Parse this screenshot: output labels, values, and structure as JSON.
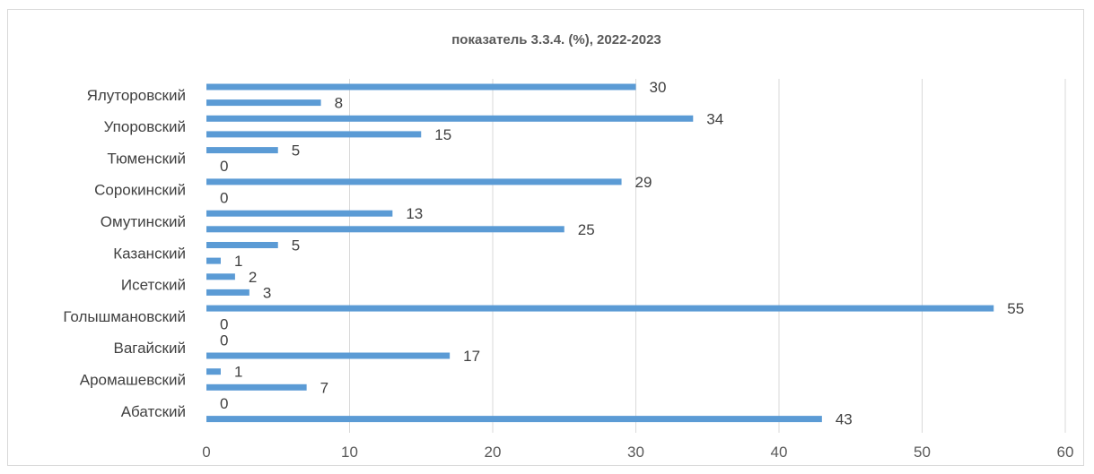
{
  "chart_data": {
    "type": "bar",
    "orientation": "horizontal",
    "title": "показатель 3.3.4. (%), 2022-2023",
    "xlim": [
      0,
      60
    ],
    "x_ticks": [
      0,
      10,
      20,
      30,
      40,
      50,
      60
    ],
    "grid": "vertical",
    "bar_color": "#5b9bd5",
    "categories": [
      "Ялуторовский",
      "Упоровский",
      "Тюменский",
      "Сорокинский",
      "Омутинский",
      "Казанский",
      "Исетский",
      "Голышмановский",
      "Вагайский",
      "Аромашевский",
      "Абатский"
    ],
    "bars": [
      {
        "category": "Ялуторовский",
        "values": [
          30,
          8
        ]
      },
      {
        "category": "Упоровский",
        "values": [
          34,
          15
        ]
      },
      {
        "category": "Тюменский",
        "values": [
          5,
          0
        ]
      },
      {
        "category": "Сорокинский",
        "values": [
          29,
          0
        ]
      },
      {
        "category": "Омутинский",
        "values": [
          13,
          25
        ]
      },
      {
        "category": "Казанский",
        "values": [
          5,
          1
        ]
      },
      {
        "category": "Исетский",
        "values": [
          2,
          3
        ]
      },
      {
        "category": "Голышмановский",
        "values": [
          55,
          0
        ]
      },
      {
        "category": "Вагайский",
        "values": [
          0,
          17
        ]
      },
      {
        "category": "Аромашевский",
        "values": [
          1,
          7
        ]
      },
      {
        "category": "Абатский",
        "values": [
          0,
          43
        ]
      }
    ]
  }
}
